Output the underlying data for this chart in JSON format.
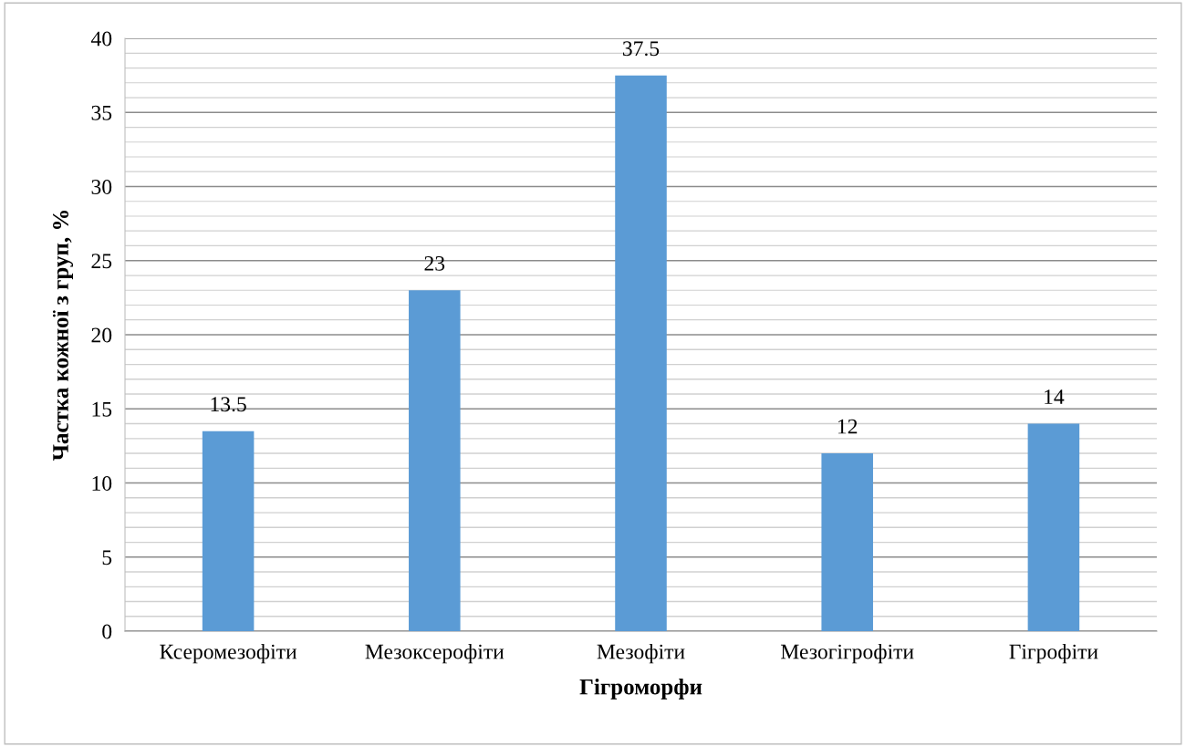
{
  "chart_data": {
    "type": "bar",
    "xlabel": "Гігроморфи",
    "ylabel": "Частка кожної з груп, %",
    "categories": [
      "Ксеромезофіти",
      "Мезоксерофіти",
      "Мезофіти",
      "Мезогігрофіти",
      "Гігрофіти"
    ],
    "values": [
      13.5,
      23,
      37.5,
      12,
      14
    ],
    "color": "#5b9bd5",
    "data_labels": true,
    "grid": "y",
    "ylim": [
      0,
      40
    ],
    "yticks": [
      0,
      {
        "value": 1,
        "label": null
      },
      {
        "value": 2,
        "label": null
      },
      {
        "value": 3,
        "label": null
      },
      {
        "value": 4,
        "label": null
      },
      5,
      {
        "value": 6,
        "label": null
      },
      {
        "value": 7,
        "label": null
      },
      {
        "value": 8,
        "label": null
      },
      {
        "value": 9,
        "label": null
      },
      10,
      {
        "value": 11,
        "label": null
      },
      {
        "value": 12,
        "label": null
      },
      {
        "value": 13,
        "label": null
      },
      {
        "value": 14,
        "label": null
      },
      15,
      {
        "value": 16,
        "label": null
      },
      {
        "value": 17,
        "label": null
      },
      {
        "value": 18,
        "label": null
      },
      {
        "value": 19,
        "label": null
      },
      20,
      {
        "value": 21,
        "label": null
      },
      {
        "value": 22,
        "label": null
      },
      {
        "value": 23,
        "label": null
      },
      {
        "value": 24,
        "label": null
      },
      25,
      {
        "value": 26,
        "label": null
      },
      {
        "value": 27,
        "label": null
      },
      {
        "value": 28,
        "label": null
      },
      {
        "value": 29,
        "label": null
      },
      30,
      {
        "value": 31,
        "label": null
      },
      {
        "value": 32,
        "label": null
      },
      {
        "value": 33,
        "label": null
      },
      {
        "value": 34,
        "label": null
      },
      35,
      {
        "value": 36,
        "label": null
      },
      {
        "value": 37,
        "label": null
      },
      {
        "value": 38,
        "label": null
      },
      {
        "value": 39,
        "label": null
      },
      40
    ]
  }
}
